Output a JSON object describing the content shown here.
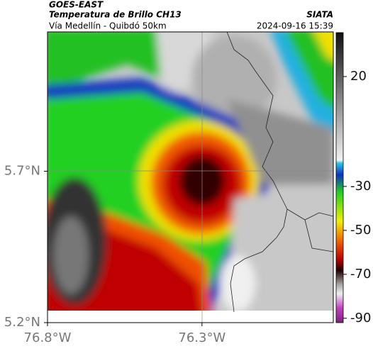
{
  "header": {
    "title": "GOES-EAST",
    "subtitle": "Temperatura de Brillo CH13",
    "location": "Vía Medellín - Quibdó 50km",
    "source": "SIATA",
    "datetime": "2024-09-16 15:39"
  },
  "map": {
    "xlim": [
      -76.8,
      -75.875
    ],
    "ylim": [
      5.2,
      6.16
    ],
    "xticks": [
      {
        "value": -76.8,
        "label": "76.8°W"
      },
      {
        "value": -76.3,
        "label": "76.3°W"
      }
    ],
    "yticks": [
      {
        "value": 5.2,
        "label": "5.2°N"
      },
      {
        "value": 5.7,
        "label": "5.7°N"
      }
    ]
  },
  "colorbar": {
    "lim": [
      40,
      -92
    ],
    "ticks": [
      20,
      -30,
      -50,
      -70,
      -90
    ]
  }
}
